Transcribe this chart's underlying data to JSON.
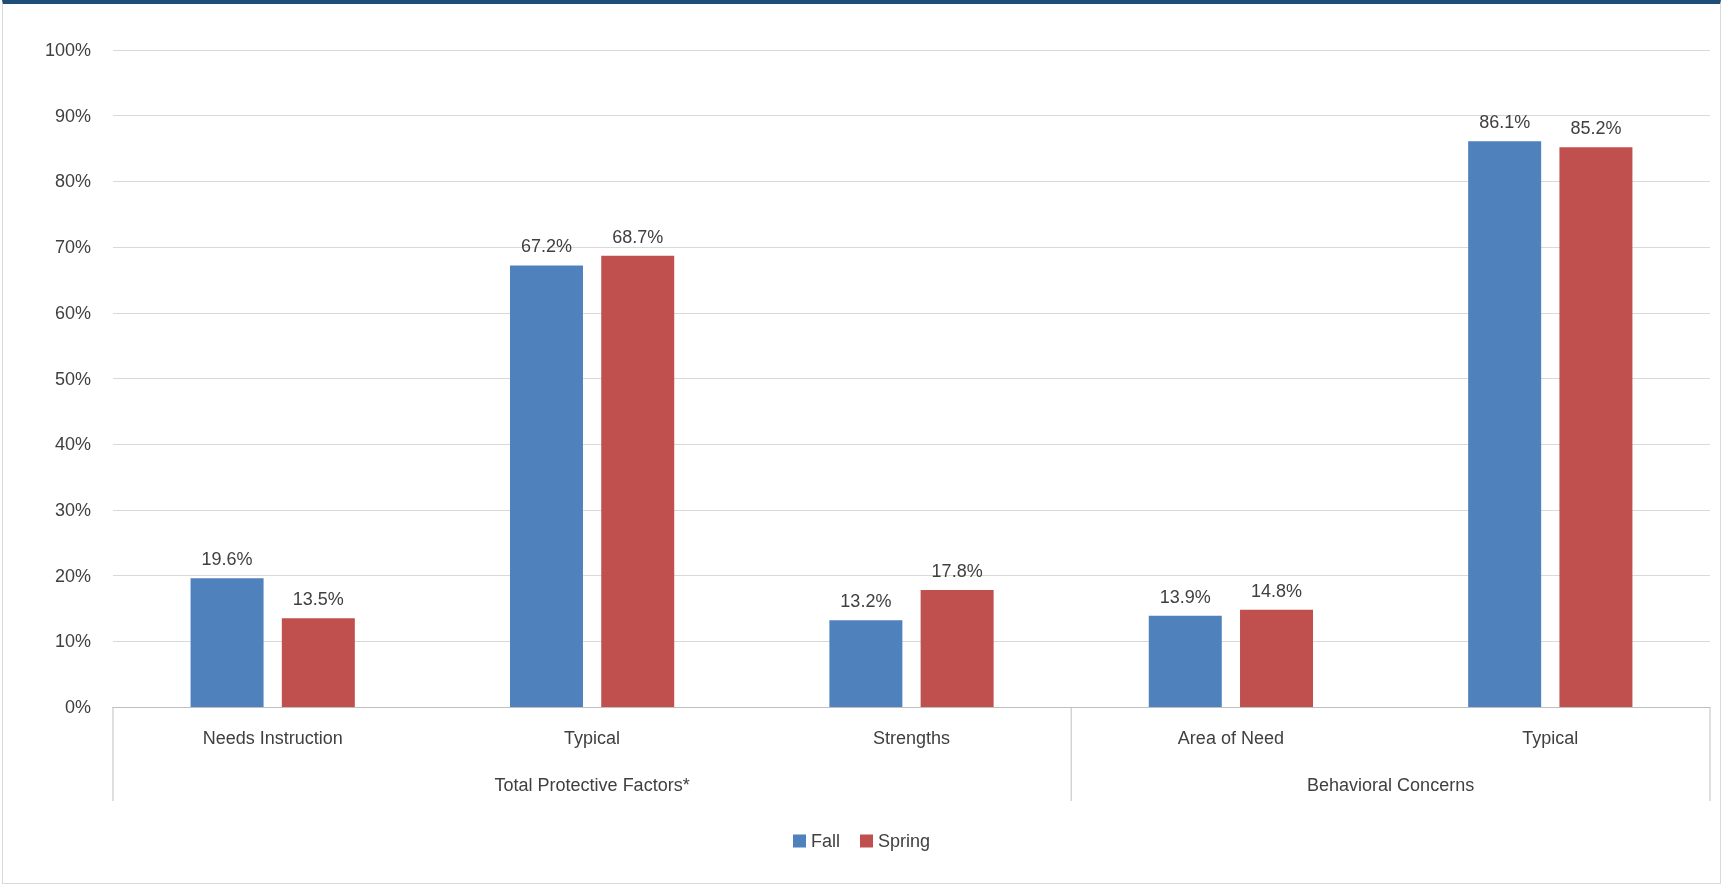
{
  "chart_data": {
    "type": "bar",
    "categories": [
      "Needs Instruction",
      "Typical",
      "Strengths",
      "Area of Need",
      "Typical"
    ],
    "series": [
      {
        "name": "Fall",
        "color": "#4f81bd",
        "values": [
          19.6,
          67.2,
          13.2,
          13.9,
          86.1
        ],
        "value_labels": [
          "19.6%",
          "67.2%",
          "13.2%",
          "13.9%",
          "86.1%"
        ]
      },
      {
        "name": "Spring",
        "color": "#c0504d",
        "values": [
          13.5,
          68.7,
          17.8,
          14.8,
          85.2
        ],
        "value_labels": [
          "13.5%",
          "68.7%",
          "17.8%",
          "14.8%",
          "85.2%"
        ]
      }
    ],
    "annotations": [
      "Total Protective Factors*",
      "Behavioral Concerns"
    ],
    "ylim": [
      0,
      100
    ],
    "yticks": [
      {
        "value": 0,
        "label": "0%"
      },
      {
        "value": 10,
        "label": "10%"
      },
      {
        "value": 20,
        "label": "20%"
      },
      {
        "value": 30,
        "label": "30%"
      },
      {
        "value": 40,
        "label": "40%"
      },
      {
        "value": 50,
        "label": "50%"
      },
      {
        "value": 60,
        "label": "60%"
      },
      {
        "value": 70,
        "label": "70%"
      },
      {
        "value": 80,
        "label": "80%"
      },
      {
        "value": 90,
        "label": "90%"
      },
      {
        "value": 100,
        "label": "100%"
      }
    ],
    "grid": "y",
    "legend": "bottom"
  }
}
